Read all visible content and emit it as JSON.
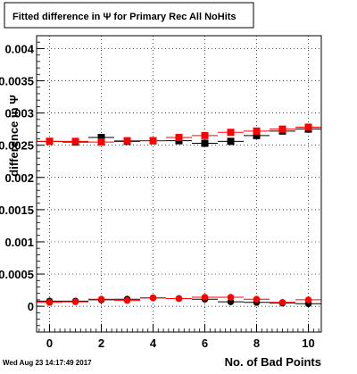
{
  "chart_data": {
    "type": "scatter",
    "title": "Fitted difference in Ψ  for Primary Rec All NoHits",
    "xlabel": "No. of Bad Points",
    "ylabel": "difference in Ψ",
    "timestamp": "Wed Aug 23 14:17:49 2017",
    "xlim": [
      -0.5,
      10.5
    ],
    "ylim": [
      -0.0004,
      0.0042
    ],
    "x_ticks": [
      0,
      2,
      4,
      6,
      8,
      10
    ],
    "x_tick_labels": [
      "0",
      "2",
      "4",
      "6",
      "8",
      "10"
    ],
    "y_ticks": [
      0,
      0.0005,
      0.001,
      0.0015,
      0.002,
      0.0025,
      0.003,
      0.0035,
      0.004
    ],
    "y_tick_labels": [
      "0",
      "0.0005",
      "0.001",
      "0.0015",
      "0.002",
      "0.0025",
      "0.003",
      "0.0035",
      "0.004"
    ],
    "grid": true,
    "series": [
      {
        "color": "#000000",
        "marker": "square",
        "x": [
          0,
          1,
          2,
          3,
          4,
          5,
          6,
          7,
          8,
          9,
          10
        ],
        "y": [
          0.00256,
          0.00255,
          0.00262,
          0.00256,
          0.00257,
          0.00257,
          0.00253,
          0.00256,
          0.00265,
          0.00272,
          0.00275
        ],
        "xerr": 0.5
      },
      {
        "color": "#ff0000",
        "marker": "square",
        "x": [
          0,
          1,
          2,
          3,
          4,
          5,
          6,
          7,
          8,
          9,
          10
        ],
        "y": [
          0.00256,
          0.00256,
          0.00255,
          0.00257,
          0.00257,
          0.00262,
          0.00265,
          0.0027,
          0.00272,
          0.00275,
          0.00278
        ],
        "xerr": 0.5
      },
      {
        "color": "#000000",
        "marker": "circle",
        "x": [
          0,
          1,
          2,
          3,
          4,
          5,
          6,
          7,
          8,
          9,
          10
        ],
        "y": [
          8e-05,
          8e-05,
          0.0001,
          0.00011,
          0.00013,
          0.00012,
          0.00011,
          7e-05,
          6e-05,
          5e-05,
          4e-05
        ],
        "xerr": 0.5
      },
      {
        "color": "#ff0000",
        "marker": "circle",
        "x": [
          0,
          1,
          2,
          3,
          4,
          5,
          6,
          7,
          8,
          9,
          10
        ],
        "y": [
          6e-05,
          7e-05,
          0.00011,
          9e-05,
          0.00013,
          0.00012,
          0.00014,
          0.00014,
          0.00011,
          6e-05,
          0.0001
        ],
        "xerr": 0.5
      }
    ],
    "colors": {
      "frame": "#000000",
      "grid": "#000000",
      "title_box_fill": "#ffffff"
    }
  }
}
